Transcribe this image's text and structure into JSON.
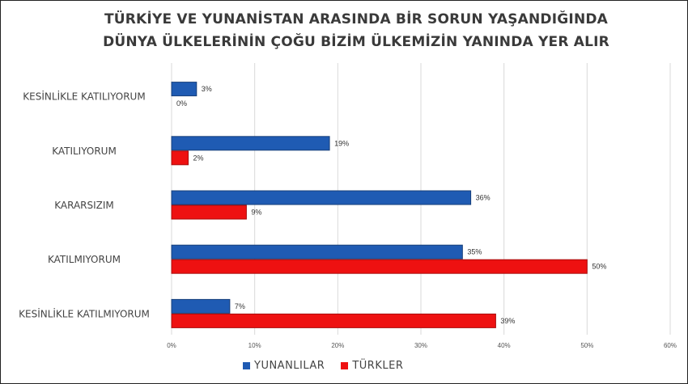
{
  "chart_data": {
    "type": "bar",
    "orientation": "horizontal",
    "title_lines": [
      "TÜRKİYE VE YUNANİSTAN ARASINDA BİR SORUN YAŞANDIĞINDA",
      "DÜNYA ÜLKELERİNİN ÇOĞU BİZİM ÜLKEMİZİN YANINDA YER ALIR"
    ],
    "categories": [
      "KESİNLİKLE KATILIYORUM",
      "KATILIYORUM",
      "KARARSIZIM",
      "KATILMIYORUM",
      "KESİNLİKLE KATILMIYORUM"
    ],
    "series": [
      {
        "name": "YUNANLILAR",
        "color": "#1f5bb3",
        "values": [
          3,
          19,
          36,
          35,
          7
        ],
        "labels": [
          "3%",
          "19%",
          "36%",
          "35%",
          "7%"
        ]
      },
      {
        "name": "TÜRKLER",
        "color": "#ee1111",
        "values": [
          0,
          2,
          9,
          50,
          39
        ],
        "labels": [
          "0%",
          "2%",
          "9%",
          "50%",
          "39%"
        ]
      }
    ],
    "xlim": [
      0,
      60
    ],
    "xticks": [
      "0%",
      "10%",
      "20%",
      "30%",
      "40%",
      "50%",
      "60%"
    ],
    "grid": true,
    "legend_position": "bottom"
  }
}
